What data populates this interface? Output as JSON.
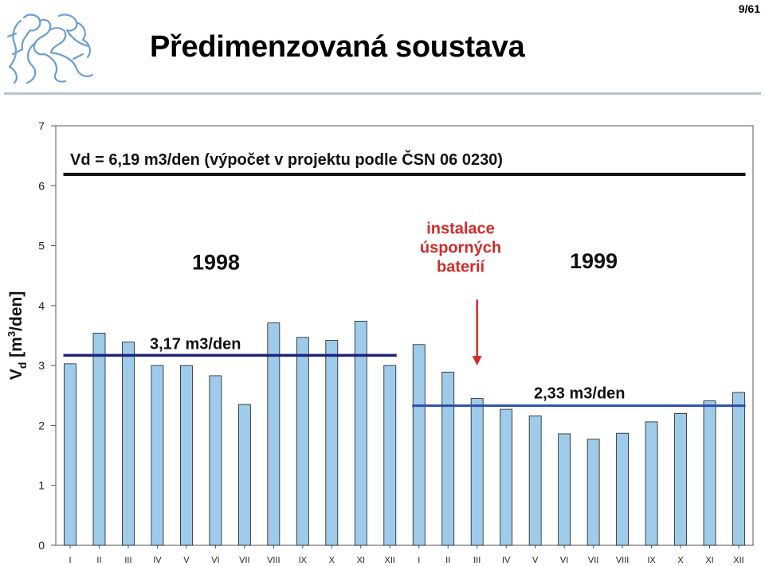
{
  "page_number": "9/61",
  "title": "Předimenzovaná soustava",
  "chart_data": {
    "type": "bar",
    "categories": [
      "I",
      "II",
      "III",
      "IV",
      "V",
      "VI",
      "VII",
      "VIII",
      "IX",
      "X",
      "XI",
      "XII",
      "I",
      "II",
      "III",
      "IV",
      "V",
      "VI",
      "VII",
      "VIII",
      "IX",
      "X",
      "XI",
      "XII"
    ],
    "values": [
      3.03,
      3.54,
      3.39,
      3.0,
      3.0,
      2.83,
      2.35,
      3.71,
      3.47,
      3.42,
      3.74,
      3.0,
      3.35,
      2.89,
      2.45,
      2.27,
      2.16,
      1.86,
      1.77,
      1.87,
      2.06,
      2.2,
      2.41,
      2.55
    ],
    "ylim": [
      0,
      7
    ],
    "yticks": [
      "0",
      "1",
      "2",
      "3",
      "4",
      "5",
      "6",
      "7"
    ],
    "ylabel_main": "V",
    "ylabel_sub": "d",
    "ylabel_unit_pre": " [m",
    "ylabel_unit_sup": "3",
    "ylabel_unit_post": "/den]",
    "bar_color": "#9fcbea",
    "reference_lines": [
      {
        "value": 6.19,
        "label": "Vd = 6,19 m3/den (výpočet v projektu podle ČSN 06 0230)",
        "from_index": 0,
        "to_index": 23,
        "color": "#111111"
      },
      {
        "value": 3.17,
        "label": "3,17 m3/den",
        "from_index": 0,
        "to_index": 11,
        "color": "#1f237a"
      },
      {
        "value": 2.33,
        "label": "2,33 m3/den",
        "from_index": 12,
        "to_index": 23,
        "color": "#2b4fa5"
      }
    ],
    "year_labels": [
      "1998",
      "1999"
    ],
    "annotation": {
      "lines": [
        "instalace",
        "úsporných",
        "baterií"
      ],
      "color": "#d42a2a",
      "arrow_index": 14
    }
  }
}
